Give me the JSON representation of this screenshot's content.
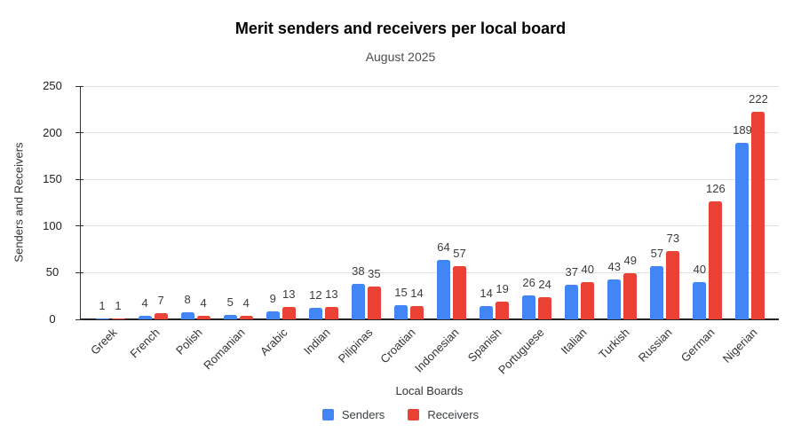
{
  "chart_data": {
    "type": "bar",
    "title": "Merit senders and receivers per local board",
    "subtitle": "August 2025",
    "xlabel": "Local Boards",
    "ylabel": "Senders and Receivers",
    "categories": [
      "Greek",
      "French",
      "Polish",
      "Romanian",
      "Arabic",
      "Indian",
      "Pilipinas",
      "Croatian",
      "Indonesian",
      "Spanish",
      "Portuguese",
      "Italian",
      "Turkish",
      "Russian",
      "German",
      "Nigerian"
    ],
    "series": [
      {
        "name": "Senders",
        "color": "#4285F4",
        "values": [
          1,
          4,
          8,
          5,
          9,
          12,
          38,
          15,
          64,
          14,
          26,
          37,
          43,
          57,
          40,
          189
        ]
      },
      {
        "name": "Receivers",
        "color": "#EA4335",
        "values": [
          1,
          7,
          4,
          4,
          13,
          13,
          35,
          14,
          57,
          19,
          24,
          40,
          49,
          73,
          126,
          222
        ]
      }
    ],
    "ylim": [
      0,
      250
    ],
    "yticks": [
      0,
      50,
      100,
      150,
      200,
      250
    ],
    "grid": true,
    "legend_position": "bottom",
    "value_labels": true,
    "colors": {
      "grid": "#e0e0e0",
      "axis": "#333333",
      "text": "#3c3c3c"
    }
  }
}
